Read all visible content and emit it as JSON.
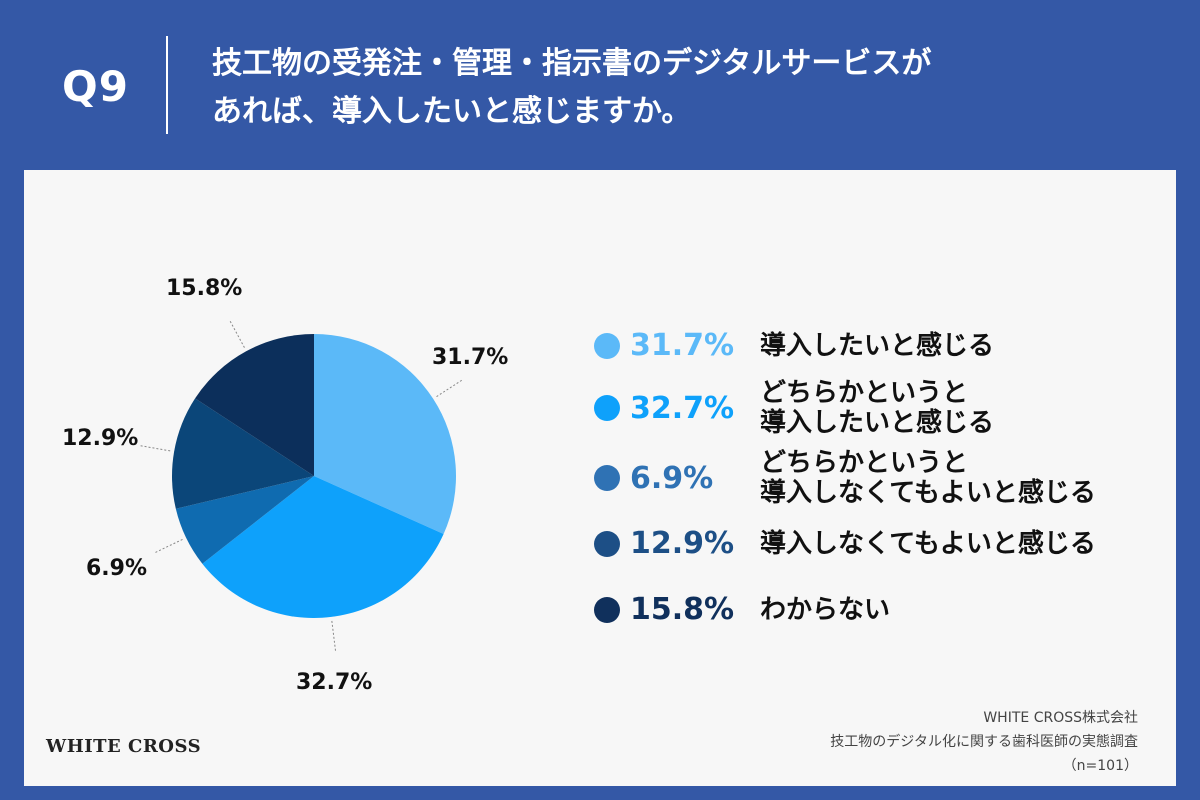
{
  "header": {
    "q_label": "Q9",
    "question_line1": "技工物の受発注・管理・指示書のデジタルサービスが",
    "question_line2": "あれば、導入したいと感じますか。"
  },
  "chart_data": {
    "type": "pie",
    "title": "",
    "slices": [
      {
        "label": "導入したいと感じる",
        "value": 31.7,
        "display": "31.7%",
        "color": "#5bb9f8"
      },
      {
        "label": "どちらかというと導入したいと感じる",
        "value": 32.7,
        "display": "32.7%",
        "color": "#0ea1fb"
      },
      {
        "label": "どちらかというと導入しなくてもよいと感じる",
        "value": 6.9,
        "display": "6.9%",
        "color": "#0f6bb0"
      },
      {
        "label": "導入しなくてもよいと感じる",
        "value": 12.9,
        "display": "12.9%",
        "color": "#0b4679"
      },
      {
        "label": "わからない",
        "value": 15.8,
        "display": "15.8%",
        "color": "#0c2f5b"
      }
    ]
  },
  "legend": [
    {
      "pct": "31.7%",
      "line1": "導入したいと感じる",
      "line2": "",
      "color": "#5bb9f8"
    },
    {
      "pct": "32.7%",
      "line1": "どちらかというと",
      "line2": "導入したいと感じる",
      "color": "#0ea1fb"
    },
    {
      "pct": "6.9%",
      "line1": "どちらかというと",
      "line2": "導入しなくてもよいと感じる",
      "color": "#2f72b4"
    },
    {
      "pct": "12.9%",
      "line1": "導入しなくてもよいと感じる",
      "line2": "",
      "color": "#1d4f86"
    },
    {
      "pct": "15.8%",
      "line1": "わからない",
      "line2": "",
      "color": "#10305c"
    }
  ],
  "footer": {
    "logo": "WHITE CROSS",
    "company": "WHITE CROSS株式会社",
    "survey": "技工物のデジタル化に関する歯科医師の実態調査",
    "sample": "（n=101）"
  }
}
